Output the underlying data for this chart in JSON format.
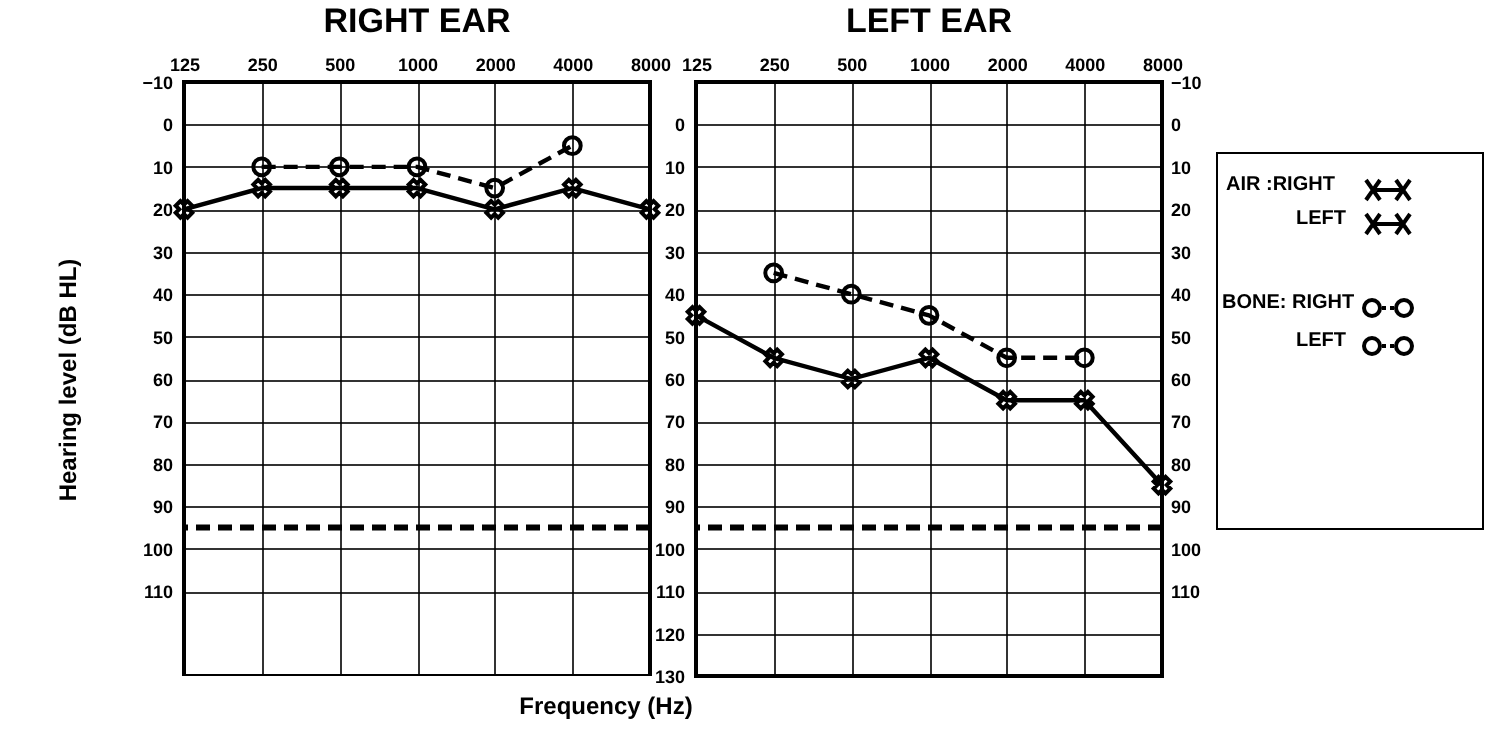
{
  "chart_data": [
    {
      "type": "line",
      "title": "RIGHT EAR",
      "ylabel": "Hearing level (dB HL)",
      "xlabel": "Frequency (Hz)",
      "categories": [
        "125",
        "250",
        "500",
        "1000",
        "2000",
        "4000",
        "8000"
      ],
      "series": [
        {
          "color": "#000000",
          "marker": "cross",
          "line_style": "solid",
          "values": [
            20,
            15,
            15,
            15,
            20,
            15,
            20
          ]
        },
        {
          "color": "#000000",
          "marker": "circle",
          "line_style": "dashed",
          "values": [
            null,
            10,
            10,
            10,
            15,
            5,
            null
          ]
        }
      ],
      "ylim": [
        130,
        -10
      ],
      "yticks": [
        -10,
        0,
        10,
        20,
        30,
        40,
        50,
        60,
        70,
        80,
        90,
        100,
        110
      ],
      "grid": true,
      "ref_lines": [
        {
          "axis": "y",
          "value": 95,
          "line_style": "dashed"
        }
      ]
    },
    {
      "type": "line",
      "title": "LEFT EAR",
      "categories": [
        "125",
        "250",
        "500",
        "1000",
        "2000",
        "4000",
        "8000"
      ],
      "series": [
        {
          "color": "#000000",
          "marker": "cross",
          "line_style": "solid",
          "values": [
            45,
            55,
            60,
            55,
            65,
            65,
            85
          ]
        },
        {
          "color": "#000000",
          "marker": "circle",
          "line_style": "dashed",
          "values": [
            null,
            35,
            40,
            45,
            55,
            55,
            null
          ]
        }
      ],
      "ylim": [
        130,
        -10
      ],
      "yticks": [
        0,
        10,
        20,
        30,
        40,
        50,
        60,
        70,
        80,
        90,
        100,
        110,
        120,
        130
      ],
      "y2lim": [
        130,
        -10
      ],
      "y2ticks": [
        -10,
        0,
        10,
        20,
        30,
        40,
        50,
        60,
        70,
        80,
        90,
        100,
        110
      ],
      "grid": true,
      "ref_lines": [
        {
          "axis": "y",
          "value": 95,
          "line_style": "dashed"
        }
      ]
    },
    {
      "type": "other",
      "annotations": [
        "AIR :RIGHT",
        "LEFT",
        "BONE: RIGHT",
        "LEFT"
      ]
    }
  ]
}
